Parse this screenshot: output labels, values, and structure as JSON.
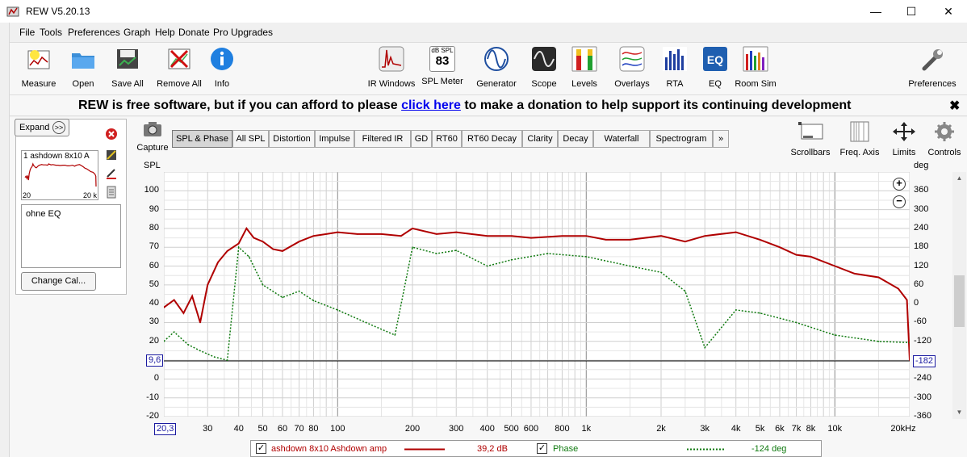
{
  "window": {
    "title": "REW V5.20.13",
    "minimize": "—",
    "maximize": "☐",
    "close": "✕"
  },
  "menu": [
    "File",
    "Tools",
    "Preferences",
    "Graph",
    "Help",
    "Donate",
    "Pro Upgrades"
  ],
  "toolbar_left": [
    {
      "label": "Measure",
      "icon": "measure-icon"
    },
    {
      "label": "Open",
      "icon": "folder-icon"
    },
    {
      "label": "Save All",
      "icon": "save-all-icon"
    },
    {
      "label": "Remove All",
      "icon": "remove-all-icon"
    },
    {
      "label": "Info",
      "icon": "info-icon"
    }
  ],
  "toolbar_center": [
    {
      "label": "IR Windows",
      "icon": "ir-windows-icon"
    },
    {
      "label": "SPL Meter",
      "icon": "spl-meter-icon",
      "meter_unit": "dB SPL",
      "meter_value": "83"
    },
    {
      "label": "Generator",
      "icon": "generator-icon"
    },
    {
      "label": "Scope",
      "icon": "scope-icon"
    },
    {
      "label": "Levels",
      "icon": "levels-icon"
    },
    {
      "label": "Overlays",
      "icon": "overlays-icon"
    },
    {
      "label": "RTA",
      "icon": "rta-icon"
    },
    {
      "label": "EQ",
      "icon": "eq-icon"
    },
    {
      "label": "Room Sim",
      "icon": "room-sim-icon"
    }
  ],
  "preferences": {
    "label": "Preferences",
    "icon": "wrench-icon"
  },
  "banner": {
    "before": "REW is free software, but if you can afford to please ",
    "link": "click here",
    "after": " to make a donation to help support its continuing development",
    "close": "✖"
  },
  "side_panel": {
    "expand_label": "Expand",
    "expand_icon": "chevron-right-icon",
    "measurement_name": "1 ashdown 8x10 A",
    "thumb_x_min": "20",
    "thumb_x_max": "20 k",
    "notes": "ohne EQ",
    "change_cal": "Change Cal..."
  },
  "capture": {
    "label": "Capture"
  },
  "tabs": [
    "SPL & Phase",
    "All SPL",
    "Distortion",
    "Impulse",
    "Filtered IR",
    "GD",
    "RT60",
    "RT60 Decay",
    "Clarity",
    "Decay",
    "Waterfall",
    "Spectrogram",
    "»"
  ],
  "active_tab": "SPL & Phase",
  "graph_tools": [
    {
      "label": "Scrollbars",
      "icon": "scrollbars-icon"
    },
    {
      "label": "Freq. Axis",
      "icon": "freq-axis-icon"
    },
    {
      "label": "Limits",
      "icon": "limits-icon"
    },
    {
      "label": "Controls",
      "icon": "gear-icon"
    }
  ],
  "cursor": {
    "y_left": "9,6",
    "y_right": "-182",
    "x": "20,3"
  },
  "legend": {
    "spl_name": "ashdown 8x10 Ashdown amp",
    "spl_value": "39,2 dB",
    "phase_name": "Phase",
    "phase_value": "-124 deg"
  },
  "colors": {
    "spl": "#b00000",
    "phase": "#107a10",
    "grid_major": "#8a8a8a",
    "grid_minor": "#cfcfcf",
    "accent": "#0000ee"
  },
  "chart_data": {
    "type": "line",
    "xlabel": "",
    "ylabel": "SPL",
    "y2label": "deg",
    "x_scale": "log",
    "xlim": [
      20,
      20000
    ],
    "ylim": [
      -20,
      110
    ],
    "y2lim": [
      -360,
      420
    ],
    "x_ticks": [
      "30",
      "40",
      "50",
      "60",
      "70",
      "80",
      "100",
      "200",
      "300",
      "400",
      "500",
      "600",
      "800",
      "1k",
      "2k",
      "3k",
      "4k",
      "5k",
      "6k",
      "7k",
      "8k",
      "10k",
      "20kHz"
    ],
    "y_ticks": [
      100,
      90,
      80,
      70,
      60,
      50,
      40,
      30,
      20,
      10,
      0,
      -10,
      -20
    ],
    "y2_ticks": [
      360,
      300,
      240,
      180,
      120,
      60,
      0,
      -60,
      -120,
      -180,
      -240,
      -300,
      -360
    ],
    "grid": true,
    "series": [
      {
        "name": "ashdown 8x10 Ashdown amp",
        "axis": "left",
        "x": [
          20,
          22,
          24,
          26,
          28,
          30,
          33,
          36,
          40,
          43,
          46,
          50,
          55,
          60,
          70,
          80,
          90,
          100,
          120,
          150,
          180,
          200,
          250,
          300,
          400,
          500,
          600,
          800,
          1000,
          1200,
          1500,
          2000,
          2500,
          3000,
          4000,
          5000,
          6000,
          7000,
          8000,
          10000,
          12000,
          15000,
          18000,
          19500,
          20000
        ],
        "y": [
          38,
          42,
          35,
          44,
          30,
          50,
          62,
          68,
          72,
          80,
          75,
          73,
          69,
          68,
          73,
          76,
          77,
          78,
          77,
          77,
          76,
          80,
          77,
          78,
          76,
          76,
          75,
          76,
          76,
          74,
          74,
          76,
          73,
          76,
          78,
          74,
          70,
          66,
          65,
          60,
          56,
          54,
          48,
          42,
          10
        ]
      },
      {
        "name": "Phase",
        "axis": "right",
        "x": [
          20,
          22,
          25,
          28,
          32,
          36,
          40,
          44,
          50,
          60,
          70,
          80,
          100,
          130,
          170,
          200,
          250,
          300,
          400,
          500,
          700,
          1000,
          1500,
          2000,
          2500,
          3000,
          4000,
          5000,
          7000,
          10000,
          15000,
          20000
        ],
        "y": [
          -120,
          -90,
          -130,
          -150,
          -170,
          -180,
          180,
          150,
          60,
          20,
          40,
          10,
          -20,
          -60,
          -100,
          180,
          160,
          170,
          120,
          140,
          160,
          150,
          120,
          100,
          40,
          -140,
          -20,
          -30,
          -60,
          -100,
          -120,
          -124
        ]
      }
    ]
  }
}
